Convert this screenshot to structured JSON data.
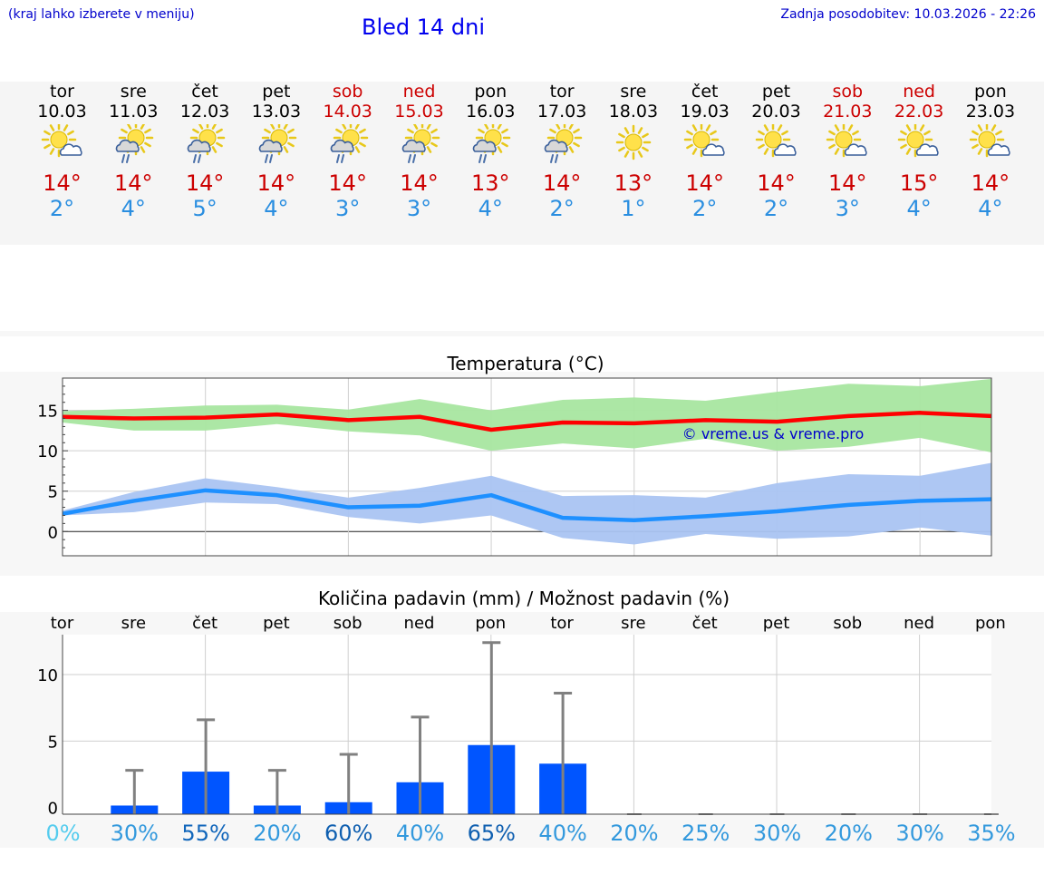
{
  "header": {
    "hint": "(kraj lahko izberete v meniju)",
    "title": "Bled 14 dni",
    "updated": "Zadnja posodobitev: 10.03.2026 - 22:26"
  },
  "colors": {
    "weekday": "#000000",
    "weekend": "#cc0000",
    "tmax": "#cc0000",
    "tmin": "#2a8ee0",
    "maxLine": "#ff0000",
    "minLine": "#1e90ff",
    "maxBand": "#a8e6a0",
    "minBand": "#aac4f2",
    "bar": "#0055ff",
    "whisker": "#808080",
    "watermark": "#0000cc"
  },
  "forecast": [
    {
      "day": "tor",
      "date": "10.03",
      "weekend": false,
      "icon": "sun-cloud-icon",
      "max": "14°",
      "min": "2°"
    },
    {
      "day": "sre",
      "date": "11.03",
      "weekend": false,
      "icon": "sun-cloud-rain-icon",
      "max": "14°",
      "min": "4°"
    },
    {
      "day": "čet",
      "date": "12.03",
      "weekend": false,
      "icon": "sun-cloud-rain-icon",
      "max": "14°",
      "min": "5°"
    },
    {
      "day": "pet",
      "date": "13.03",
      "weekend": false,
      "icon": "sun-cloud-rain-icon",
      "max": "14°",
      "min": "4°"
    },
    {
      "day": "sob",
      "date": "14.03",
      "weekend": true,
      "icon": "sun-cloud-rain-icon",
      "max": "14°",
      "min": "3°"
    },
    {
      "day": "ned",
      "date": "15.03",
      "weekend": true,
      "icon": "sun-cloud-rain-icon",
      "max": "14°",
      "min": "3°"
    },
    {
      "day": "pon",
      "date": "16.03",
      "weekend": false,
      "icon": "sun-cloud-rain-icon",
      "max": "13°",
      "min": "4°"
    },
    {
      "day": "tor",
      "date": "17.03",
      "weekend": false,
      "icon": "sun-cloud-rain-icon",
      "max": "14°",
      "min": "2°"
    },
    {
      "day": "sre",
      "date": "18.03",
      "weekend": false,
      "icon": "sun-icon",
      "max": "13°",
      "min": "1°"
    },
    {
      "day": "čet",
      "date": "19.03",
      "weekend": false,
      "icon": "sun-cloud-icon",
      "max": "14°",
      "min": "2°"
    },
    {
      "day": "pet",
      "date": "20.03",
      "weekend": false,
      "icon": "sun-cloud-icon",
      "max": "14°",
      "min": "2°"
    },
    {
      "day": "sob",
      "date": "21.03",
      "weekend": true,
      "icon": "sun-cloud-icon",
      "max": "14°",
      "min": "3°"
    },
    {
      "day": "ned",
      "date": "22.03",
      "weekend": true,
      "icon": "sun-cloud-icon",
      "max": "15°",
      "min": "4°"
    },
    {
      "day": "pon",
      "date": "23.03",
      "weekend": false,
      "icon": "sun-cloud-icon",
      "max": "14°",
      "min": "4°"
    }
  ],
  "chart_data": [
    {
      "type": "line",
      "title": "Temperatura (°C)",
      "watermark": "© vreme.us & vreme.pro",
      "ylim": [
        -3,
        19
      ],
      "yticks": [
        "0",
        "5",
        "10",
        "15"
      ],
      "grid": true,
      "x": [
        0,
        1,
        2,
        3,
        4,
        5,
        6,
        7,
        8,
        9,
        10,
        11,
        12,
        13
      ],
      "series": [
        {
          "name": "max",
          "values": [
            14.2,
            14.0,
            14.1,
            14.5,
            13.8,
            14.2,
            12.6,
            13.5,
            13.4,
            13.8,
            13.6,
            14.3,
            14.7,
            14.3
          ],
          "low": [
            13.5,
            12.5,
            12.5,
            13.3,
            12.4,
            11.9,
            10.0,
            10.9,
            10.3,
            11.5,
            10.0,
            10.5,
            11.6,
            9.8
          ],
          "high": [
            14.9,
            15.2,
            15.6,
            15.7,
            15.1,
            16.4,
            15.0,
            16.3,
            16.6,
            16.2,
            17.3,
            18.3,
            18.0,
            18.9
          ]
        },
        {
          "name": "min",
          "values": [
            2.2,
            3.8,
            5.1,
            4.5,
            3.0,
            3.2,
            4.5,
            1.7,
            1.4,
            1.9,
            2.5,
            3.3,
            3.8,
            4.0
          ],
          "low": [
            2.0,
            2.4,
            3.6,
            3.4,
            1.8,
            1.0,
            2.0,
            -0.8,
            -1.6,
            -0.3,
            -0.9,
            -0.6,
            0.5,
            -0.5
          ],
          "high": [
            2.6,
            4.9,
            6.6,
            5.5,
            4.2,
            5.4,
            6.9,
            4.4,
            4.5,
            4.2,
            6.0,
            7.1,
            6.9,
            8.5
          ]
        }
      ]
    },
    {
      "type": "bar",
      "title": "Količina padavin (mm) / Možnost padavin (%)",
      "categories": [
        "tor",
        "sre",
        "čet",
        "pet",
        "sob",
        "ned",
        "pon",
        "tor",
        "sre",
        "čet",
        "pet",
        "sob",
        "ned",
        "pon"
      ],
      "ylim": [
        -0.5,
        13
      ],
      "yticks": [
        "0",
        "5",
        "10"
      ],
      "grid": true,
      "values": [
        0.0,
        0.15,
        2.7,
        0.15,
        0.4,
        1.9,
        4.7,
        3.3,
        0,
        0,
        0,
        0,
        0,
        0
      ],
      "max": [
        0.0,
        2.8,
        6.6,
        2.8,
        4.0,
        6.8,
        12.4,
        8.6,
        0,
        0,
        0,
        0,
        0,
        0
      ],
      "probability": [
        "0%",
        "30%",
        "55%",
        "20%",
        "60%",
        "40%",
        "65%",
        "40%",
        "20%",
        "25%",
        "30%",
        "20%",
        "30%",
        "35%"
      ],
      "probability_colors": [
        "#55ccee",
        "#3399dd",
        "#1166bb",
        "#3399dd",
        "#0f5fb0",
        "#3399dd",
        "#0f5fb0",
        "#3399dd",
        "#3399dd",
        "#3399dd",
        "#3399dd",
        "#3399dd",
        "#3399dd",
        "#3399dd"
      ]
    }
  ]
}
